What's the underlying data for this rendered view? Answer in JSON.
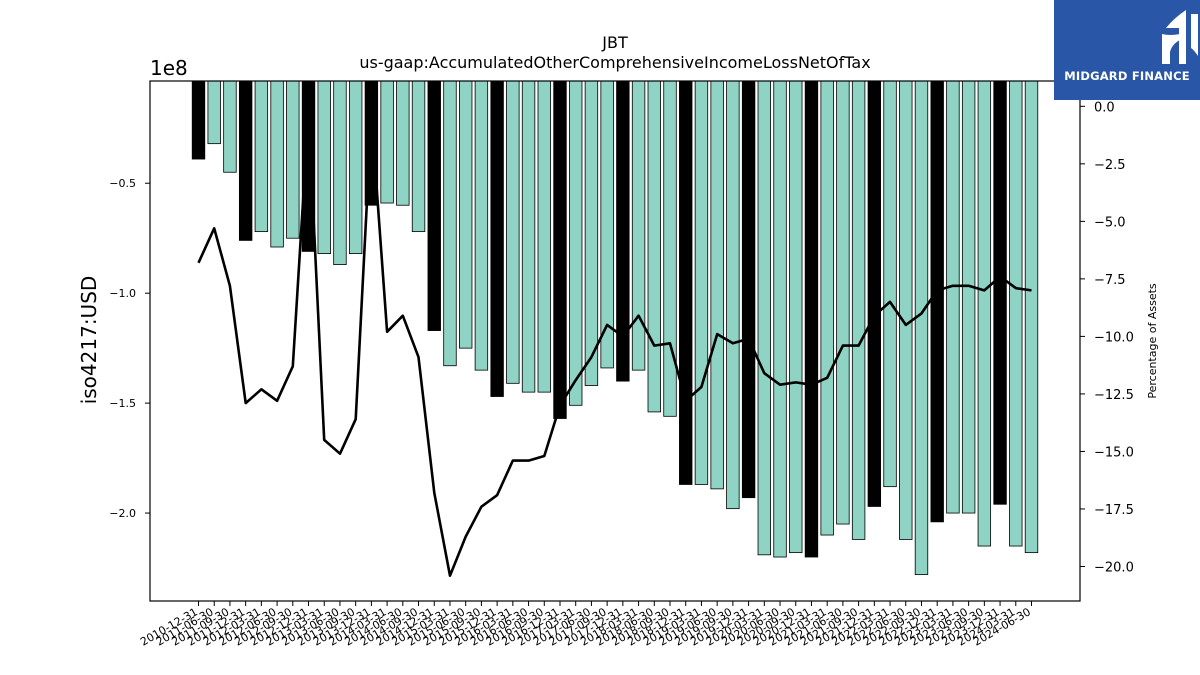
{
  "chart_data": {
    "type": "bar",
    "title": "JBT",
    "subtitle": "us-gaap:AccumulatedOtherComprehensiveIncomeLossNetOfTax",
    "ylabel": "iso4217:USD",
    "y2label": "Percentage of Assets",
    "y_offset_text": "1e8",
    "ylim": [
      -240000000.0,
      -3500000.0
    ],
    "y2lim": [
      -21.5,
      1.1
    ],
    "yticks": [
      -2.0,
      -1.5,
      -1.0,
      -0.5
    ],
    "y2ticks": [
      -20.0,
      -17.5,
      -15.0,
      -12.5,
      -10.0,
      -7.5,
      -5.0,
      -2.5,
      0.0
    ],
    "grid": false,
    "categories": [
      "2010-12-31",
      "2011-06-30",
      "2011-09-30",
      "2011-12-31",
      "2012-03-31",
      "2012-06-30",
      "2012-09-30",
      "2012-12-31",
      "2013-03-31",
      "2013-06-30",
      "2013-09-30",
      "2013-12-31",
      "2014-03-31",
      "2014-06-30",
      "2014-09-30",
      "2014-12-31",
      "2015-03-31",
      "2015-06-30",
      "2015-09-30",
      "2015-12-31",
      "2016-03-31",
      "2016-06-30",
      "2016-09-30",
      "2016-12-31",
      "2017-03-31",
      "2017-06-30",
      "2017-09-30",
      "2017-12-31",
      "2018-03-31",
      "2018-06-30",
      "2018-09-30",
      "2018-12-31",
      "2019-03-31",
      "2019-06-30",
      "2019-09-30",
      "2019-12-31",
      "2020-03-31",
      "2020-06-30",
      "2020-09-30",
      "2020-12-31",
      "2021-03-31",
      "2021-06-30",
      "2021-09-30",
      "2021-12-31",
      "2022-03-31",
      "2022-06-30",
      "2022-09-30",
      "2022-12-31",
      "2023-03-31",
      "2023-06-30",
      "2023-09-30",
      "2023-12-31",
      "2024-03-31",
      "2024-06-30"
    ],
    "bar_colors": {
      "year_end": "#000000",
      "quarter": "#8ed3c3"
    },
    "series": [
      {
        "type": "bar",
        "values": [
          -39000000.0,
          -32000000.0,
          -45000000.0,
          -76000000.0,
          -72000000.0,
          -79000000.0,
          -75000000.0,
          -81000000.0,
          -82000000.0,
          -87000000.0,
          -82000000.0,
          -60000000.0,
          -59000000.0,
          -60000000.0,
          -72000000.0,
          -117000000.0,
          -133000000.0,
          -125000000.0,
          -135000000.0,
          -147000000.0,
          -141000000.0,
          -145000000.0,
          -145000000.0,
          -157000000.0,
          -151000000.0,
          -142000000.0,
          -134000000.0,
          -140000000.0,
          -135000000.0,
          -154000000.0,
          -156000000.0,
          -187000000.0,
          -187000000.0,
          -189000000.0,
          -198000000.0,
          -193000000.0,
          -219000000.0,
          -220000000.0,
          -218000000.0,
          -220000000.0,
          -210000000.0,
          -205000000.0,
          -212000000.0,
          -197000000.0,
          -188000000.0,
          -212000000.0,
          -228000000.0,
          -204000000.0,
          -200000000.0,
          -200000000.0,
          -215000000.0,
          -196000000.0,
          -215000000.0,
          -218000000.0
        ]
      },
      {
        "type": "line",
        "axis": "right",
        "color": "#000000",
        "values": [
          -6.8,
          -5.3,
          -7.8,
          -12.9,
          -12.3,
          -12.8,
          -11.3,
          -0.3,
          -14.5,
          -15.1,
          -13.6,
          -0.4,
          -9.8,
          -9.1,
          -10.9,
          -16.8,
          -20.4,
          -18.7,
          -17.4,
          -16.9,
          -15.4,
          -15.4,
          -15.2,
          -13.0,
          -11.9,
          -10.9,
          -9.5,
          -10.0,
          -9.1,
          -10.4,
          -10.3,
          -12.8,
          -12.2,
          -9.9,
          -10.3,
          -10.1,
          -11.6,
          -12.1,
          -12.0,
          -12.1,
          -11.8,
          -10.4,
          -10.4,
          -9.1,
          -8.5,
          -9.5,
          -9.0,
          -8.0,
          -7.8,
          -7.8,
          -8.0,
          -7.4,
          -7.9,
          -8.0
        ]
      }
    ]
  },
  "branding": {
    "logo_text": "MIDGARD FINANCE",
    "logo_color": "#2a56a8"
  }
}
